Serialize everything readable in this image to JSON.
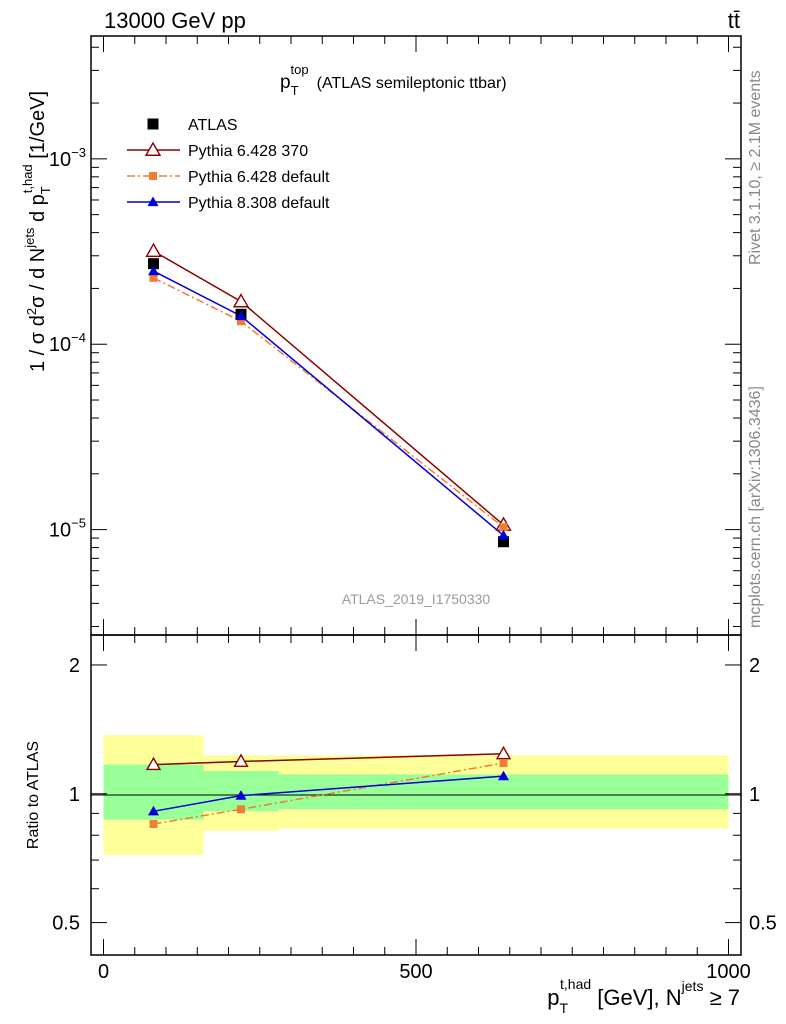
{
  "header": {
    "energy_label": "13000 GeV pp",
    "process_label": "tt̄"
  },
  "side_text": {
    "rivet": "Rivet 3.1.10, ≥ 2.1M events",
    "site": "mcplots.cern.ch [arXiv:1306.3436]"
  },
  "chart_data": [
    {
      "panel": "main",
      "type": "scatter",
      "title": "(ATLAS semileptonic ttbar)",
      "title_var": {
        "base": "p",
        "sub": "T",
        "sup": "top"
      },
      "ylabel": {
        "prefix": "1 / σ d",
        "sup2": "2",
        "mid": "σ /  d N",
        "sup_jets": "jets",
        "mid2": " d p",
        "sub_T": "T",
        "sup_had": "t,had",
        "unit": " [1/GeV]"
      },
      "yscale": "log",
      "ylim": [
        2.7e-06,
        0.0046
      ],
      "xlim": [
        -20,
        1020
      ],
      "y_ticks": [
        {
          "value": 1e-05,
          "base": "10",
          "exp": "−5"
        },
        {
          "value": 0.0001,
          "base": "10",
          "exp": "−4"
        },
        {
          "value": 0.001,
          "base": "10",
          "exp": "−3"
        }
      ],
      "legend_position": "top-left",
      "analysis_label": "ATLAS_2019_I1750330",
      "x": [
        80,
        220,
        640
      ],
      "series": [
        {
          "name": "ATLAS",
          "values": [
            0.000272,
            0.000145,
            8.6e-06
          ],
          "color": "#000000",
          "marker": "square-filled",
          "line": "none"
        },
        {
          "name": "Pythia 6.428 370",
          "values": [
            0.000318,
            0.00017,
            1.06e-05
          ],
          "color": "#8b0000",
          "marker": "triangle-open",
          "line": "solid"
        },
        {
          "name": "Pythia 6.428 default",
          "values": [
            0.000228,
            0.000133,
            1.03e-05
          ],
          "color": "#f47c32",
          "marker": "square-filled-small",
          "line": "dashdot"
        },
        {
          "name": "Pythia 8.308 default",
          "values": [
            0.000248,
            0.000142,
            9.3e-06
          ],
          "color": "#0000dd",
          "marker": "triangle-filled",
          "line": "solid"
        }
      ]
    },
    {
      "panel": "ratio",
      "type": "line",
      "ylabel": "Ratio to ATLAS",
      "yscale": "log",
      "ylim": [
        0.42,
        2.35
      ],
      "xlim": [
        -20,
        1020
      ],
      "y_ticks": [
        {
          "value": 0.5,
          "label": "0.5"
        },
        {
          "value": 1,
          "label": "1"
        },
        {
          "value": 2,
          "label": "2"
        }
      ],
      "x_ticks": [
        {
          "value": 0,
          "label": "0"
        },
        {
          "value": 500,
          "label": "500"
        },
        {
          "value": 1000,
          "label": "1000"
        }
      ],
      "xlabel": {
        "base": "p",
        "sub": "T",
        "sup": "t,had",
        "unit": " [GeV], N",
        "sup_jets": "jets",
        "cond": " ≥ 7"
      },
      "uncertainty_bands": [
        {
          "x_from": 0,
          "x_to": 160,
          "stat_low": 0.87,
          "stat_high": 1.17,
          "total_low": 0.72,
          "total_high": 1.37
        },
        {
          "x_from": 160,
          "x_to": 280,
          "stat_low": 0.91,
          "stat_high": 1.13,
          "total_low": 0.82,
          "total_high": 1.23
        },
        {
          "x_from": 280,
          "x_to": 1000,
          "stat_low": 0.92,
          "stat_high": 1.11,
          "total_low": 0.83,
          "total_high": 1.23
        }
      ],
      "band_colors": {
        "stat": "#99ff99",
        "total": "#ffff99"
      },
      "x": [
        80,
        220,
        640
      ],
      "series": [
        {
          "name": "Pythia 6.428 370",
          "values": [
            1.17,
            1.19,
            1.24
          ],
          "color": "#8b0000",
          "marker": "triangle-open",
          "line": "solid"
        },
        {
          "name": "Pythia 6.428 default",
          "values": [
            0.85,
            0.92,
            1.18
          ],
          "color": "#f47c32",
          "marker": "square-filled-small",
          "line": "dashdot"
        },
        {
          "name": "Pythia 8.308 default",
          "values": [
            0.91,
            0.99,
            1.1
          ],
          "color": "#0000dd",
          "marker": "triangle-filled",
          "line": "solid"
        }
      ]
    }
  ]
}
